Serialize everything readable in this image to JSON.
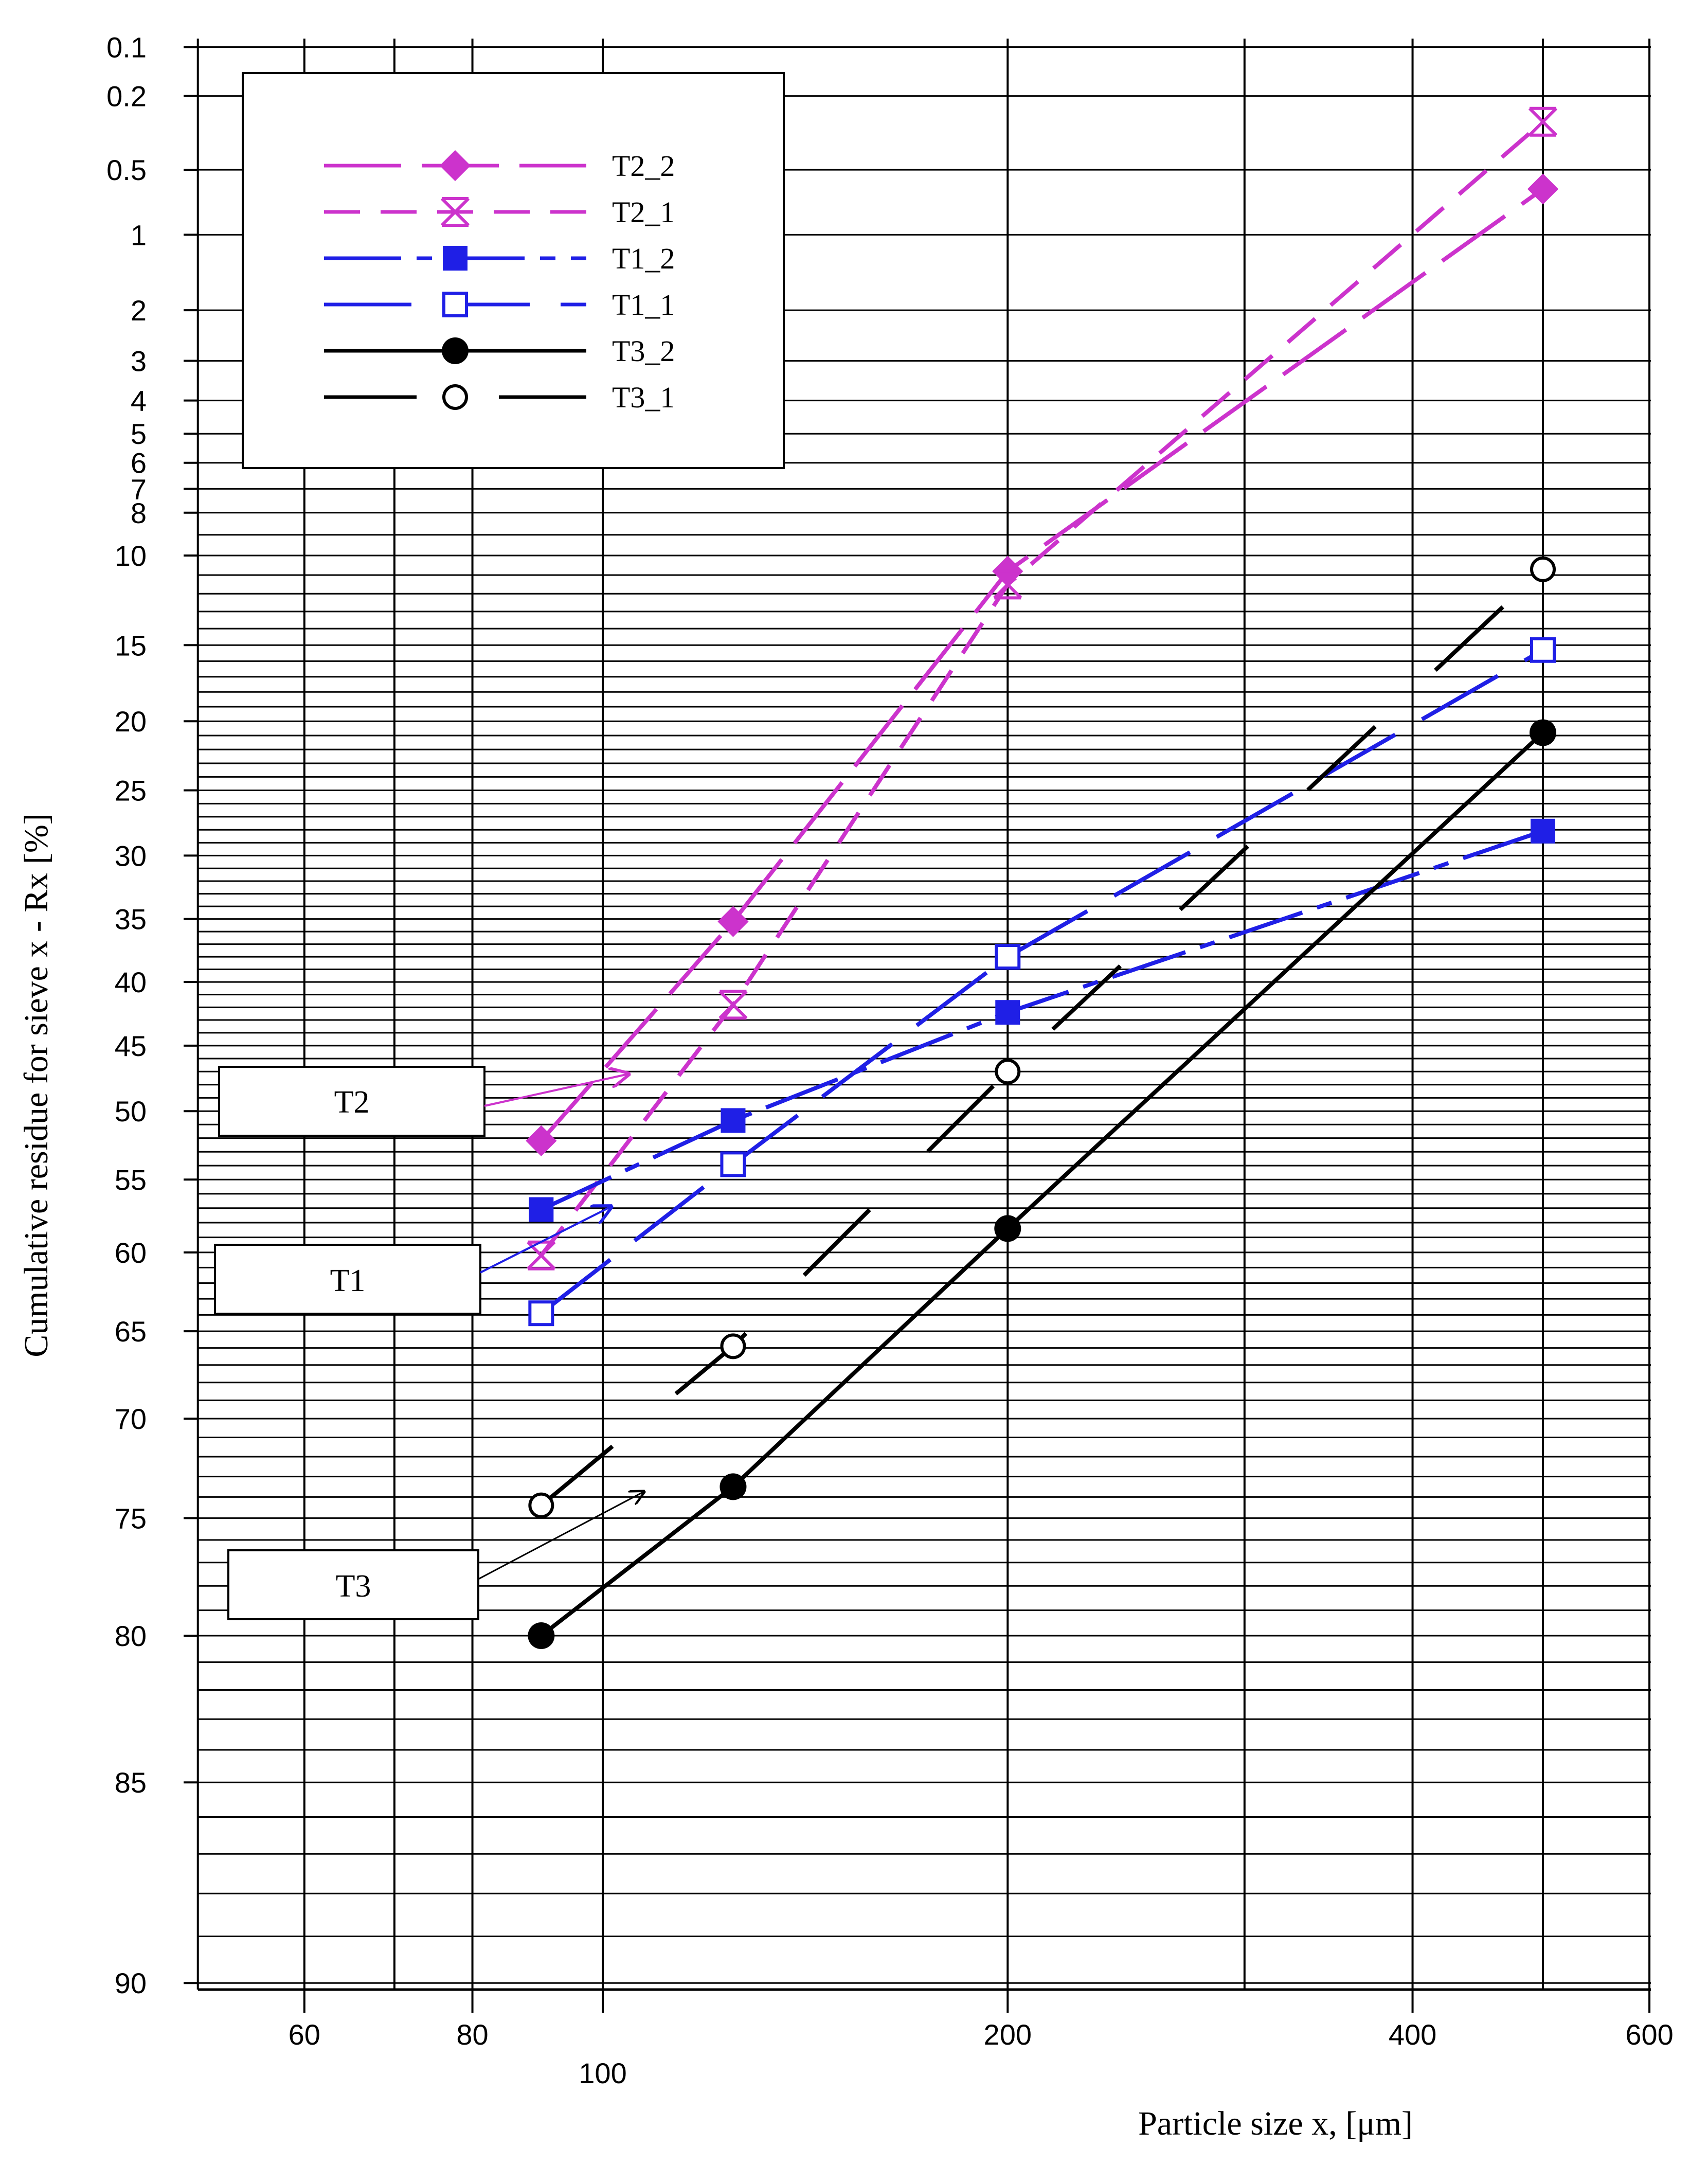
{
  "chart_data": {
    "type": "line",
    "xlabel": "Particle size x, [μm]",
    "ylabel": "Cumulative residue for sieve x - Rx [%]",
    "x_scale": "log",
    "y_scale": "probability (Rosin-Rammler)",
    "xlim": [
      50,
      600
    ],
    "ylim": [
      0.1,
      90
    ],
    "x_ticks": [
      {
        "value": 60,
        "label": "60",
        "row": "upper"
      },
      {
        "value": 80,
        "label": "80",
        "row": "upper"
      },
      {
        "value": 100,
        "label": "100",
        "row": "lower"
      },
      {
        "value": 200,
        "label": "200",
        "row": "upper"
      },
      {
        "value": 400,
        "label": "400",
        "row": "upper"
      },
      {
        "value": 600,
        "label": "600",
        "row": "upper"
      }
    ],
    "y_ticks": [
      {
        "value": 0.1,
        "label": "0.1"
      },
      {
        "value": 0.2,
        "label": "0.2"
      },
      {
        "value": 0.5,
        "label": "0.5"
      },
      {
        "value": 1,
        "label": "1"
      },
      {
        "value": 2,
        "label": "2"
      },
      {
        "value": 3,
        "label": "3"
      },
      {
        "value": 4,
        "label": "4"
      },
      {
        "value": 5,
        "label": "5"
      },
      {
        "value": 6,
        "label": "6"
      },
      {
        "value": 7,
        "label": "7"
      },
      {
        "value": 8,
        "label": "8"
      },
      {
        "value": 10,
        "label": "10"
      },
      {
        "value": 15,
        "label": "15"
      },
      {
        "value": 20,
        "label": "20"
      },
      {
        "value": 25,
        "label": "25"
      },
      {
        "value": 30,
        "label": "30"
      },
      {
        "value": 35,
        "label": "35"
      },
      {
        "value": 40,
        "label": "40"
      },
      {
        "value": 45,
        "label": "45"
      },
      {
        "value": 50,
        "label": "50"
      },
      {
        "value": 55,
        "label": "55"
      },
      {
        "value": 60,
        "label": "60"
      },
      {
        "value": 65,
        "label": "65"
      },
      {
        "value": 70,
        "label": "70"
      },
      {
        "value": 75,
        "label": "75"
      },
      {
        "value": 80,
        "label": "80"
      },
      {
        "value": 85,
        "label": "85"
      },
      {
        "value": 90,
        "label": "90"
      }
    ],
    "x_major_gridlines": [
      50,
      60,
      70,
      80,
      100,
      200,
      300,
      400,
      500,
      600
    ],
    "y_minor_gridlines_per_percent": true,
    "x": [
      90,
      125,
      200,
      500
    ],
    "series": [
      {
        "name": "T2_2",
        "values": [
          52.2,
          35.2,
          10.8,
          0.62
        ],
        "color": "#cc33cc",
        "dash": "long",
        "marker": "diamond-filled"
      },
      {
        "name": "T2_1",
        "values": [
          60.2,
          41.8,
          11.5,
          0.28
        ],
        "color": "#cc33cc",
        "dash": "short",
        "marker": "star-open"
      },
      {
        "name": "T1_2",
        "values": [
          57.1,
          50.7,
          42.4,
          28.1
        ],
        "color": "#1f1fe6",
        "dash": "dashdot",
        "marker": "square-filled"
      },
      {
        "name": "T1_1",
        "values": [
          63.9,
          53.9,
          38.0,
          15.3
        ],
        "color": "#1f1fe6",
        "dash": "longdash",
        "marker": "square-open"
      },
      {
        "name": "T3_2",
        "values": [
          80.0,
          73.5,
          58.4,
          20.8
        ],
        "color": "#000000",
        "dash": "solid",
        "marker": "circle-filled"
      },
      {
        "name": "T3_1",
        "values": [
          74.4,
          65.9,
          47.0,
          10.7
        ],
        "color": "#000000",
        "dash": "longgap",
        "marker": "circle-open"
      }
    ],
    "legend": {
      "placement": "top-left"
    },
    "grid": true,
    "annotations": [
      {
        "text": "T2",
        "points_to": "T2 series"
      },
      {
        "text": "T1",
        "points_to": "T1 series"
      },
      {
        "text": "T3",
        "points_to": "T3 series"
      }
    ]
  }
}
